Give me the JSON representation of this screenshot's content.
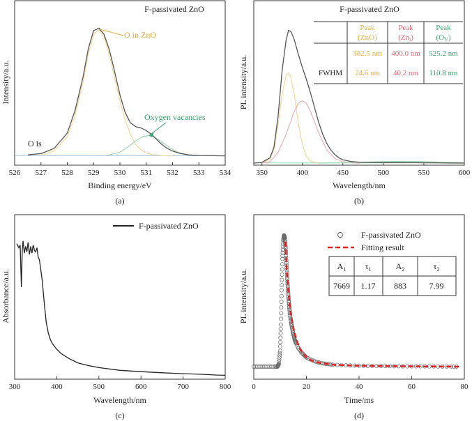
{
  "chart_data": [
    {
      "id": "a",
      "type": "line",
      "panel_label": "(a)",
      "title": "F-passivated ZnO",
      "xlabel": "Binding energy/eV",
      "ylabel": "Intensity/a.u.",
      "xlim": [
        526,
        534
      ],
      "ylim": [
        0,
        1.1
      ],
      "x_ticks": [
        "526",
        "527",
        "528",
        "529",
        "530",
        "531",
        "532",
        "533",
        "534"
      ],
      "annotations": {
        "o_in_zno": "O in ZnO",
        "oxygen_vacancies": "Oxygen vacancies",
        "o1s": "O ls"
      },
      "colors": {
        "measured": "#555555",
        "zno": "#f2d79c",
        "vac": "#9fd6b5",
        "baseline": "#a7c8e6"
      },
      "series": [
        {
          "name": "Measured",
          "x": [
            526.5,
            527,
            527.5,
            528,
            528.3,
            528.6,
            528.8,
            529,
            529.2,
            529.4,
            529.6,
            529.8,
            530,
            530.2,
            530.4,
            530.6,
            530.8,
            531,
            531.2,
            531.4,
            531.6,
            531.8,
            532,
            532.3,
            532.6,
            533,
            533.5,
            534
          ],
          "values": [
            0.01,
            0.02,
            0.06,
            0.18,
            0.36,
            0.62,
            0.84,
            0.98,
            1.0,
            0.95,
            0.83,
            0.66,
            0.48,
            0.34,
            0.26,
            0.23,
            0.22,
            0.2,
            0.17,
            0.13,
            0.09,
            0.06,
            0.04,
            0.02,
            0.01,
            0.005,
            0.003,
            0.002
          ]
        },
        {
          "name": "O in ZnO",
          "x": [
            527,
            527.5,
            528,
            528.3,
            528.6,
            528.8,
            529,
            529.2,
            529.4,
            529.6,
            529.8,
            530,
            530.2,
            530.4,
            530.6,
            530.8,
            531,
            531.3,
            531.6,
            532
          ],
          "values": [
            0.01,
            0.04,
            0.15,
            0.32,
            0.58,
            0.8,
            0.95,
            0.99,
            0.93,
            0.79,
            0.61,
            0.43,
            0.28,
            0.17,
            0.09,
            0.05,
            0.025,
            0.01,
            0.004,
            0.001
          ]
        },
        {
          "name": "Oxygen vacancies",
          "x": [
            529.5,
            530,
            530.3,
            530.6,
            530.9,
            531.1,
            531.3,
            531.6,
            531.9,
            532.2,
            532.6,
            533
          ],
          "values": [
            0.005,
            0.03,
            0.07,
            0.12,
            0.155,
            0.16,
            0.15,
            0.11,
            0.065,
            0.03,
            0.01,
            0.003
          ]
        }
      ]
    },
    {
      "id": "b",
      "type": "line",
      "panel_label": "(b)",
      "title": "F-passivated ZnO",
      "xlabel": "Wavelength/nm",
      "ylabel": "PL intensity/a.u.",
      "xlim": [
        340,
        600
      ],
      "ylim": [
        0,
        1.05
      ],
      "x_ticks": [
        "350",
        "400",
        "450",
        "500",
        "550",
        "600"
      ],
      "table": {
        "headers": [
          {
            "line1": "Peak",
            "line2": "(ZnO)"
          },
          {
            "line1": "Peak",
            "line2": "(Zn",
            "sub": "i",
            "line2_end": ")"
          },
          {
            "line1": "Peak",
            "line2": "(O",
            "sub": "V",
            "line2_end": ")"
          }
        ],
        "peak_row": [
          "382.5 nm",
          "400.0 nm",
          "525.2 nm"
        ],
        "fwhm_label": "FWHM",
        "fwhm_row": [
          "24.6 nm",
          "40.2 nm",
          "110.8 nm"
        ],
        "header_colors": [
          "#e8b04a",
          "#e06a78",
          "#3aa36f"
        ]
      },
      "colors": {
        "measured": "#555555",
        "zno": "#f2d79c",
        "zni": "#eeb1b8",
        "ov": "#9fd6b5"
      },
      "series": [
        {
          "name": "Measured",
          "x": [
            340,
            350,
            360,
            365,
            370,
            375,
            380,
            383,
            386,
            390,
            395,
            400,
            405,
            410,
            415,
            420,
            425,
            430,
            435,
            440,
            445,
            450,
            460,
            470,
            480,
            500,
            520,
            540,
            560,
            580,
            600
          ],
          "values": [
            0.0,
            0.005,
            0.04,
            0.12,
            0.35,
            0.7,
            0.93,
            1.0,
            0.99,
            0.93,
            0.82,
            0.72,
            0.63,
            0.53,
            0.42,
            0.31,
            0.22,
            0.15,
            0.1,
            0.065,
            0.04,
            0.025,
            0.012,
            0.007,
            0.005,
            0.004,
            0.004,
            0.003,
            0.002,
            0.001,
            0.0
          ]
        },
        {
          "name": "Peak (ZnO)",
          "x": [
            350,
            360,
            365,
            370,
            375,
            380,
            382.5,
            385,
            390,
            395,
            400,
            405,
            410,
            420
          ],
          "values": [
            0.0,
            0.03,
            0.1,
            0.29,
            0.52,
            0.66,
            0.68,
            0.66,
            0.52,
            0.3,
            0.14,
            0.05,
            0.015,
            0.0
          ]
        },
        {
          "name": "Peak (Zni)",
          "x": [
            350,
            360,
            370,
            380,
            390,
            395,
            400,
            405,
            410,
            420,
            430,
            440,
            450,
            460,
            470
          ],
          "values": [
            0.0,
            0.01,
            0.08,
            0.22,
            0.39,
            0.45,
            0.47,
            0.45,
            0.39,
            0.23,
            0.1,
            0.035,
            0.01,
            0.003,
            0.0
          ]
        },
        {
          "name": "Peak (Ov)",
          "x": [
            420,
            450,
            480,
            500,
            525,
            550,
            580,
            600
          ],
          "values": [
            0.0,
            0.003,
            0.008,
            0.011,
            0.013,
            0.011,
            0.006,
            0.003
          ]
        }
      ]
    },
    {
      "id": "c",
      "type": "line",
      "panel_label": "(c)",
      "xlabel": "Wavelength/nm",
      "ylabel": "Absorbance/a.u.",
      "xlim": [
        300,
        800
      ],
      "ylim": [
        0,
        1.05
      ],
      "x_ticks": [
        "300",
        "400",
        "500",
        "600",
        "700",
        "800"
      ],
      "legend": {
        "entries": [
          "F-passivated ZnO"
        ],
        "position": "top-center"
      },
      "colors": {
        "line": "#222222"
      },
      "series": [
        {
          "name": "F-passivated ZnO",
          "x": [
            305,
            310,
            313,
            316,
            318,
            320,
            323,
            326,
            329,
            332,
            335,
            338,
            341,
            344,
            347,
            350,
            353,
            356,
            359,
            362,
            365,
            368,
            371,
            375,
            380,
            385,
            390,
            400,
            410,
            420,
            430,
            450,
            475,
            500,
            550,
            600,
            650,
            700,
            750,
            780,
            800
          ],
          "values": [
            0.98,
            0.95,
            0.97,
            0.66,
            0.93,
            1.0,
            0.91,
            0.96,
            0.92,
            0.99,
            0.9,
            0.96,
            0.91,
            0.97,
            0.93,
            0.92,
            0.95,
            0.88,
            0.86,
            0.79,
            0.72,
            0.62,
            0.52,
            0.4,
            0.32,
            0.27,
            0.24,
            0.2,
            0.17,
            0.15,
            0.13,
            0.1,
            0.08,
            0.065,
            0.045,
            0.035,
            0.027,
            0.02,
            0.015,
            0.01,
            0.008
          ]
        }
      ]
    },
    {
      "id": "d",
      "type": "scatter",
      "panel_label": "(d)",
      "xlabel": "Time/ms",
      "ylabel": "PL intensity/a.u.",
      "xlim": [
        0,
        80
      ],
      "ylim": [
        0,
        1.05
      ],
      "x_ticks": [
        "0",
        "20",
        "40",
        "60",
        "80"
      ],
      "legend": {
        "entries": [
          "F-passivated ZnO",
          "Fitting result"
        ],
        "position": "top-right"
      },
      "table": {
        "headers": [
          {
            "main": "A",
            "sub": "1"
          },
          {
            "main": "τ",
            "sub": "1"
          },
          {
            "main": "A",
            "sub": "2"
          },
          {
            "main": "τ",
            "sub": "2"
          }
        ],
        "values": [
          "7669",
          "1.17",
          "883",
          "7.99"
        ]
      },
      "colors": {
        "points": "#666666",
        "fit": "#e02020"
      },
      "series": [
        {
          "name": "F-passivated ZnO",
          "x": [
            0,
            2,
            4,
            6,
            8,
            9,
            9.5,
            10,
            10.3,
            10.6,
            10.9,
            11.2,
            11.5,
            11.8,
            12.1,
            12.4,
            12.7,
            13,
            13.3,
            13.6,
            14,
            14.5,
            15,
            15.5,
            16,
            17,
            18,
            19,
            20,
            22,
            24,
            26,
            28,
            30,
            35,
            40,
            45,
            50,
            55,
            60,
            65,
            70,
            75,
            78
          ],
          "values": [
            0.0,
            0.0,
            0.0,
            0.0,
            0.0,
            0.0,
            0.02,
            0.12,
            0.32,
            0.58,
            0.82,
            0.96,
            1.0,
            0.98,
            0.9,
            0.79,
            0.68,
            0.58,
            0.5,
            0.43,
            0.36,
            0.3,
            0.25,
            0.21,
            0.18,
            0.14,
            0.11,
            0.09,
            0.07,
            0.05,
            0.035,
            0.025,
            0.02,
            0.015,
            0.01,
            0.007,
            0.005,
            0.004,
            0.003,
            0.002,
            0.002,
            0.001,
            0.001,
            0.0
          ]
        },
        {
          "name": "Fitting result",
          "x": [
            12,
            12.5,
            13,
            13.5,
            14,
            15,
            16,
            17,
            18,
            20,
            22,
            25,
            30,
            35,
            40,
            50,
            60,
            70,
            78
          ],
          "values": [
            0.95,
            0.74,
            0.6,
            0.49,
            0.41,
            0.3,
            0.22,
            0.16,
            0.12,
            0.07,
            0.045,
            0.028,
            0.015,
            0.01,
            0.007,
            0.004,
            0.002,
            0.001,
            0.0
          ]
        }
      ]
    }
  ]
}
